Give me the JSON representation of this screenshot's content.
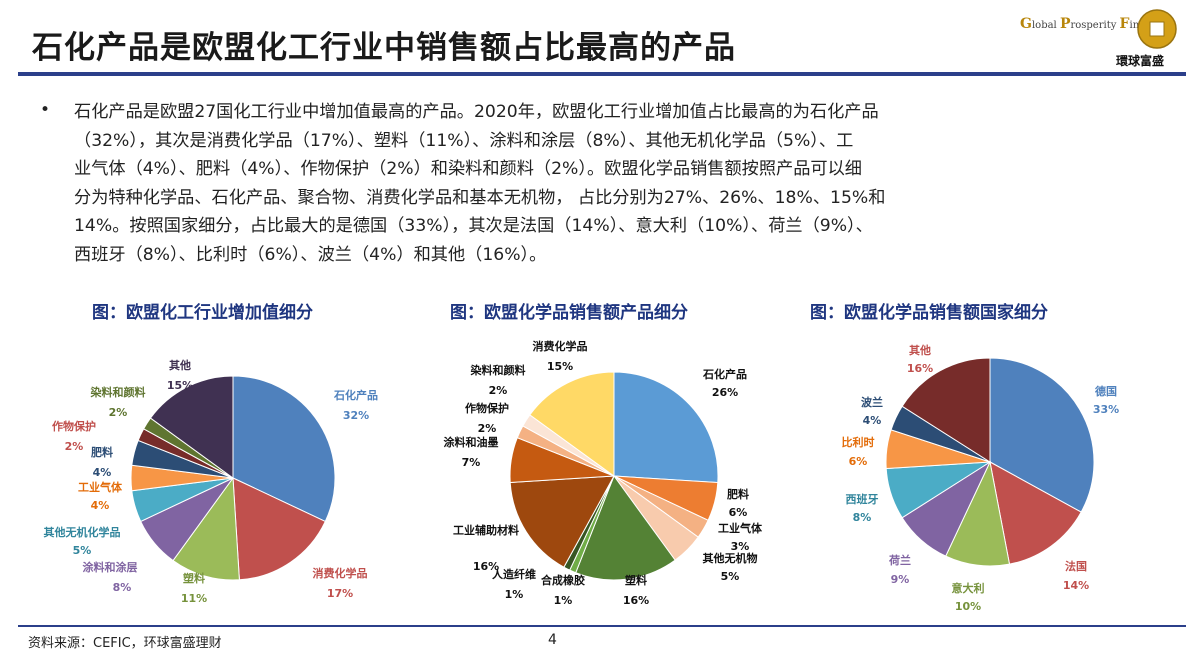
{
  "header": {
    "title": "石化产品是欧盟化工行业中销售额占比最高的产品",
    "logo_en": [
      "G",
      "lobal ",
      "P",
      "rosperity ",
      "F",
      "inancial"
    ],
    "logo_cn": "環球富盛"
  },
  "body": {
    "bullet": "•",
    "lines": [
      "石化产品是欧盟27国化工行业中增加值最高的产品。2020年，欧盟化工行业增加值占比最高的为石化产品",
      "（32%），其次是消费化学品（17%）、塑料（11%）、涂料和涂层（8%）、其他无机化学品（5%）、工",
      "业气体（4%）、肥料（4%）、作物保护（2%）和染料和颜料（2%）。欧盟化学品销售额按照产品可以细",
      "分为特种化学品、石化产品、聚合物、消费化学品和基本无机物， 占比分别为27%、26%、18%、15%和",
      "14%。按照国家细分，占比最大的是德国（33%），其次是法国（14%）、意大利（10%）、荷兰（9%）、",
      "西班牙（8%）、比利时（6%）、波兰（4%）和其他（16%）。"
    ]
  },
  "chart_data": [
    {
      "type": "pie",
      "title": "图：欧盟化工行业增加值细分",
      "slices": [
        {
          "name": "石化产品",
          "value": 32,
          "label": "32%",
          "color": "#4f81bd"
        },
        {
          "name": "消费化学品",
          "value": 17,
          "label": "17%",
          "color": "#c0504d"
        },
        {
          "name": "塑料",
          "value": 11,
          "label": "11%",
          "color": "#9bbb59"
        },
        {
          "name": "涂料和涂层",
          "value": 8,
          "label": "8%",
          "color": "#8064a2"
        },
        {
          "name": "其他无机化学品",
          "value": 5,
          "label": "5%",
          "color": "#4bacc6"
        },
        {
          "name": "工业气体",
          "value": 4,
          "label": "4%",
          "color": "#f79646"
        },
        {
          "name": "肥料",
          "value": 4,
          "label": "4%",
          "color": "#2c4d75"
        },
        {
          "name": "作物保护",
          "value": 2,
          "label": "2%",
          "color": "#772c2a"
        },
        {
          "name": "染料和颜料",
          "value": 2,
          "label": "2%",
          "color": "#5f7530"
        },
        {
          "name": "其他",
          "value": 15,
          "label": "15%",
          "color": "#403152"
        }
      ]
    },
    {
      "type": "pie",
      "title": "图：欧盟化学品销售额产品细分",
      "slices": [
        {
          "name": "石化产品",
          "value": 26,
          "label": "26%",
          "color": "#5b9bd5"
        },
        {
          "name": "肥料",
          "value": 6,
          "label": "6%",
          "color": "#ed7d31"
        },
        {
          "name": "工业气体",
          "value": 3,
          "label": "3%",
          "color": "#f4b183"
        },
        {
          "name": "其他无机物",
          "value": 5,
          "label": "5%",
          "color": "#f8cbad"
        },
        {
          "name": "塑料",
          "value": 16,
          "label": "16%",
          "color": "#548235"
        },
        {
          "name": "合成橡胶",
          "value": 1,
          "label": "1%",
          "color": "#70ad47"
        },
        {
          "name": "人造纤维",
          "value": 1,
          "label": "1%",
          "color": "#375623"
        },
        {
          "name": "工业辅助材料",
          "value": 16,
          "label": "16%",
          "color": "#9e480e"
        },
        {
          "name": "涂料和油墨",
          "value": 7,
          "label": "7%",
          "color": "#c55a11"
        },
        {
          "name": "作物保护",
          "value": 2,
          "label": "2%",
          "color": "#f4b183"
        },
        {
          "name": "染料和颜料",
          "value": 2,
          "label": "2%",
          "color": "#fbe5d6"
        },
        {
          "name": "消费化学品",
          "value": 15,
          "label": "15%",
          "color": "#ffd966"
        }
      ]
    },
    {
      "type": "pie",
      "title": "图：欧盟化学品销售额国家细分",
      "slices": [
        {
          "name": "德国",
          "value": 33,
          "label": "33%",
          "color": "#4f81bd"
        },
        {
          "name": "法国",
          "value": 14,
          "label": "14%",
          "color": "#c0504d"
        },
        {
          "name": "意大利",
          "value": 10,
          "label": "10%",
          "color": "#9bbb59"
        },
        {
          "name": "荷兰",
          "value": 9,
          "label": "9%",
          "color": "#8064a2"
        },
        {
          "name": "西班牙",
          "value": 8,
          "label": "8%",
          "color": "#4bacc6"
        },
        {
          "name": "比利时",
          "value": 6,
          "label": "6%",
          "color": "#f79646"
        },
        {
          "name": "波兰",
          "value": 4,
          "label": "4%",
          "color": "#2c4d75"
        },
        {
          "name": "其他",
          "value": 16,
          "label": "16%",
          "color": "#772c2a"
        }
      ]
    }
  ],
  "footer": {
    "source": "资料来源：CEFIC，环球富盛理财",
    "page": "4"
  }
}
